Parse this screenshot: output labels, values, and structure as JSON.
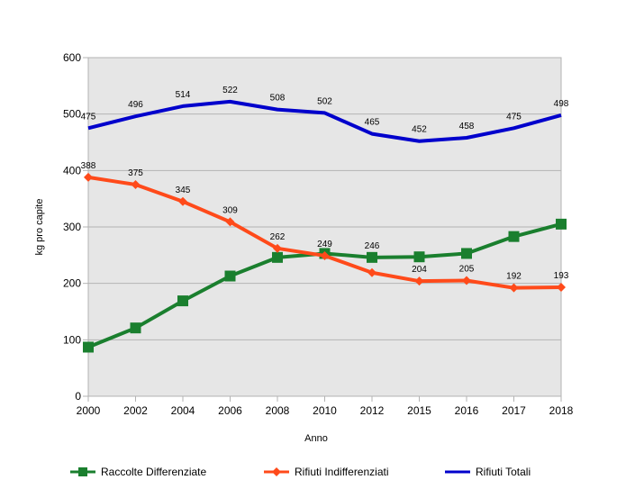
{
  "chart_data": {
    "type": "line",
    "categories": [
      "2000",
      "2002",
      "2004",
      "2006",
      "2008",
      "2010",
      "2012",
      "2015",
      "2016",
      "2017",
      "2018"
    ],
    "xlabel": "Anno",
    "ylabel": "kg pro capite",
    "ylim": [
      0,
      600
    ],
    "yticks": [
      0,
      100,
      200,
      300,
      400,
      500,
      600
    ],
    "grid": true,
    "legend": "bottom",
    "series": [
      {
        "name": "Raccolte Differenziate",
        "color": "#1a7f2e",
        "marker": "square",
        "values": [
          87,
          121,
          169,
          213,
          246,
          253,
          246,
          247,
          253,
          283,
          305
        ],
        "labels": [
          "",
          "",
          "",
          "",
          "",
          "",
          "246",
          "",
          "",
          "",
          ""
        ]
      },
      {
        "name": "Rifiuti Indifferenziati",
        "color": "#ff4a1a",
        "marker": "diamond",
        "values": [
          388,
          375,
          345,
          309,
          262,
          249,
          219,
          204,
          205,
          192,
          193
        ],
        "labels": [
          "388",
          "375",
          "345",
          "309",
          "262",
          "249",
          "",
          "204",
          "205",
          "192",
          "193"
        ]
      },
      {
        "name": "Rifiuti Totali",
        "color": "#0000cc",
        "marker": "none",
        "values": [
          475,
          496,
          514,
          522,
          508,
          502,
          465,
          452,
          458,
          475,
          498
        ],
        "labels": [
          "475",
          "496",
          "514",
          "522",
          "508",
          "502",
          "465",
          "452",
          "458",
          "475",
          "498"
        ]
      }
    ]
  }
}
